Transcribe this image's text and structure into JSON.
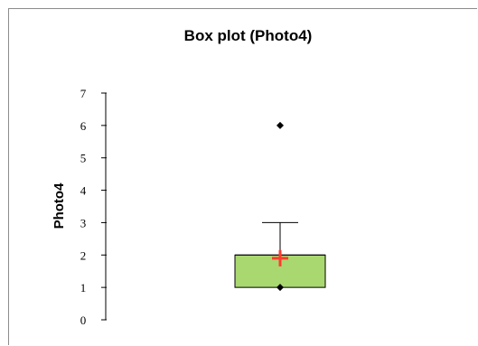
{
  "chart_data": {
    "type": "box",
    "title": "Box plot (Photo4)",
    "xlabel": "",
    "ylabel": "Photo4",
    "ylim": [
      0,
      7
    ],
    "yticks": [
      "0",
      "1",
      "2",
      "3",
      "4",
      "5",
      "6",
      "7"
    ],
    "box": {
      "q1": 1,
      "median": 2,
      "q3": 2,
      "whisker_low": 1,
      "whisker_high": 3,
      "mean": 1.9,
      "min": 1,
      "max": 6,
      "outliers": [
        6
      ]
    },
    "colors": {
      "box_fill": "#a9d770",
      "mean_marker": "#ff3b30",
      "points": "#000000"
    },
    "grid": false,
    "legend": "none"
  }
}
